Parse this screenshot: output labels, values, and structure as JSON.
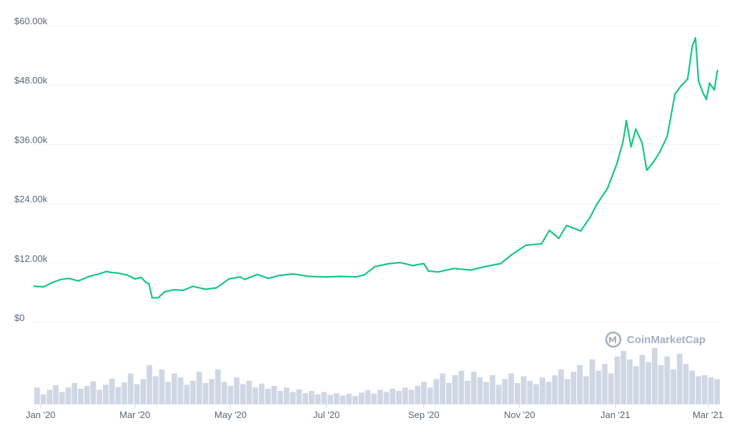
{
  "chart_data": {
    "type": "line",
    "price_axis": {
      "min": 0,
      "max": 60000,
      "ticks": [
        0,
        12000,
        24000,
        36000,
        48000,
        60000
      ],
      "tick_labels": [
        "$0",
        "$12.00k",
        "$24.00k",
        "$36.00k",
        "$48.00k",
        "$60.00k"
      ]
    },
    "x_axis": {
      "start": "2019-12-28",
      "end": "2021-03-09",
      "tick_dates": [
        "2020-01-01",
        "2020-03-01",
        "2020-05-01",
        "2020-07-01",
        "2020-09-01",
        "2020-11-01",
        "2021-01-01",
        "2021-03-01"
      ],
      "tick_labels": [
        "Jan '20",
        "Mar '20",
        "May '20",
        "Jul '20",
        "Sep '20",
        "Nov '20",
        "Jan '21",
        "Mar '21"
      ]
    },
    "grid": true,
    "colors": {
      "price": "#16c784",
      "volume": "#cfd6e4",
      "grid": "#eff2f5",
      "tick_text": "#58667e",
      "watermark": "#a6b0c3"
    },
    "price_series": [
      [
        "2019-12-28",
        7300
      ],
      [
        "2020-01-03",
        7200
      ],
      [
        "2020-01-08",
        8000
      ],
      [
        "2020-01-14",
        8700
      ],
      [
        "2020-01-19",
        8900
      ],
      [
        "2020-01-25",
        8400
      ],
      [
        "2020-02-01",
        9300
      ],
      [
        "2020-02-07",
        9800
      ],
      [
        "2020-02-12",
        10300
      ],
      [
        "2020-02-15",
        10100
      ],
      [
        "2020-02-19",
        10000
      ],
      [
        "2020-02-25",
        9600
      ],
      [
        "2020-03-01",
        8800
      ],
      [
        "2020-03-05",
        9100
      ],
      [
        "2020-03-08",
        8100
      ],
      [
        "2020-03-10",
        7800
      ],
      [
        "2020-03-12",
        4970
      ],
      [
        "2020-03-16",
        5000
      ],
      [
        "2020-03-20",
        6200
      ],
      [
        "2020-03-26",
        6600
      ],
      [
        "2020-04-01",
        6500
      ],
      [
        "2020-04-07",
        7300
      ],
      [
        "2020-04-15",
        6700
      ],
      [
        "2020-04-22",
        7000
      ],
      [
        "2020-04-30",
        8800
      ],
      [
        "2020-05-07",
        9200
      ],
      [
        "2020-05-10",
        8700
      ],
      [
        "2020-05-18",
        9700
      ],
      [
        "2020-05-25",
        8900
      ],
      [
        "2020-06-01",
        9500
      ],
      [
        "2020-06-10",
        9800
      ],
      [
        "2020-06-20",
        9300
      ],
      [
        "2020-07-01",
        9200
      ],
      [
        "2020-07-10",
        9300
      ],
      [
        "2020-07-20",
        9200
      ],
      [
        "2020-07-25",
        9600
      ],
      [
        "2020-08-01",
        11300
      ],
      [
        "2020-08-10",
        11900
      ],
      [
        "2020-08-17",
        12100
      ],
      [
        "2020-08-25",
        11500
      ],
      [
        "2020-09-01",
        11900
      ],
      [
        "2020-09-04",
        10400
      ],
      [
        "2020-09-10",
        10200
      ],
      [
        "2020-09-20",
        10900
      ],
      [
        "2020-10-01",
        10600
      ],
      [
        "2020-10-10",
        11300
      ],
      [
        "2020-10-20",
        11900
      ],
      [
        "2020-10-27",
        13700
      ],
      [
        "2020-11-05",
        15600
      ],
      [
        "2020-11-15",
        15900
      ],
      [
        "2020-11-20",
        18600
      ],
      [
        "2020-11-26",
        17000
      ],
      [
        "2020-12-01",
        19600
      ],
      [
        "2020-12-10",
        18500
      ],
      [
        "2020-12-16",
        21300
      ],
      [
        "2020-12-20",
        23800
      ],
      [
        "2020-12-27",
        27100
      ],
      [
        "2021-01-02",
        32100
      ],
      [
        "2021-01-06",
        36700
      ],
      [
        "2021-01-08",
        40800
      ],
      [
        "2021-01-11",
        35500
      ],
      [
        "2021-01-14",
        39100
      ],
      [
        "2021-01-18",
        36300
      ],
      [
        "2021-01-21",
        30800
      ],
      [
        "2021-01-25",
        32300
      ],
      [
        "2021-01-29",
        34300
      ],
      [
        "2021-02-03",
        37600
      ],
      [
        "2021-02-08",
        46200
      ],
      [
        "2021-02-12",
        47900
      ],
      [
        "2021-02-16",
        49200
      ],
      [
        "2021-02-19",
        55900
      ],
      [
        "2021-02-21",
        57500
      ],
      [
        "2021-02-23",
        48800
      ],
      [
        "2021-02-26",
        46300
      ],
      [
        "2021-02-28",
        45100
      ],
      [
        "2021-03-02",
        48400
      ],
      [
        "2021-03-05",
        47000
      ],
      [
        "2021-03-07",
        50900
      ]
    ],
    "volume_series": [
      0.3,
      0.18,
      0.26,
      0.34,
      0.22,
      0.3,
      0.38,
      0.28,
      0.33,
      0.41,
      0.26,
      0.35,
      0.46,
      0.31,
      0.39,
      0.55,
      0.36,
      0.45,
      0.7,
      0.5,
      0.62,
      0.4,
      0.55,
      0.48,
      0.35,
      0.42,
      0.58,
      0.38,
      0.45,
      0.62,
      0.4,
      0.33,
      0.48,
      0.36,
      0.42,
      0.3,
      0.37,
      0.28,
      0.33,
      0.24,
      0.3,
      0.22,
      0.27,
      0.2,
      0.24,
      0.18,
      0.22,
      0.17,
      0.2,
      0.16,
      0.19,
      0.15,
      0.21,
      0.25,
      0.19,
      0.26,
      0.22,
      0.28,
      0.24,
      0.3,
      0.26,
      0.33,
      0.4,
      0.3,
      0.45,
      0.55,
      0.38,
      0.52,
      0.6,
      0.42,
      0.58,
      0.48,
      0.4,
      0.52,
      0.35,
      0.45,
      0.55,
      0.38,
      0.5,
      0.42,
      0.36,
      0.48,
      0.4,
      0.52,
      0.62,
      0.45,
      0.58,
      0.7,
      0.5,
      0.8,
      0.6,
      0.72,
      0.55,
      0.85,
      0.95,
      0.8,
      0.68,
      0.88,
      0.75,
      1.0,
      0.7,
      0.85,
      0.62,
      0.9,
      0.72,
      0.6,
      0.5,
      0.52,
      0.48,
      0.45
    ],
    "watermark": "CoinMarketCap"
  }
}
